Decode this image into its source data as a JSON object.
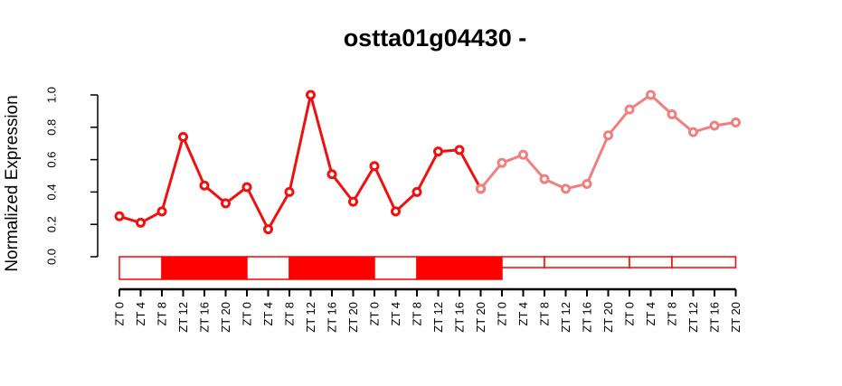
{
  "chart_data": {
    "type": "line",
    "title": "ostta01g04430 -",
    "xlabel": "",
    "ylabel": "Normalized Expression",
    "ylim": [
      0,
      1
    ],
    "yticks": [
      "0.0",
      "0.2",
      "0.4",
      "0.6",
      "0.8",
      "1.0"
    ],
    "x_tick_labels": [
      "ZT 0",
      "ZT 4",
      "ZT 8",
      "ZT 12",
      "ZT 16",
      "ZT 20",
      "ZT 0",
      "ZT 4",
      "ZT 8",
      "ZT 12",
      "ZT 16",
      "ZT 20",
      "ZT 0",
      "ZT 4",
      "ZT 8",
      "ZT 12",
      "ZT 16",
      "ZT 20",
      "ZT 0",
      "ZT 4",
      "ZT 8",
      "ZT 12",
      "ZT 16",
      "ZT 20",
      "ZT 0",
      "ZT 4",
      "ZT 8",
      "ZT 12",
      "ZT 16",
      "ZT 20"
    ],
    "grid": false,
    "legend": "none",
    "series": [
      {
        "color": "#ee1111",
        "x": [
          0,
          1,
          2,
          3,
          4,
          5,
          6,
          7,
          8,
          9,
          10,
          11,
          12,
          13,
          14,
          15,
          16,
          17
        ],
        "values": [
          0.25,
          0.21,
          0.28,
          0.74,
          0.44,
          0.33,
          0.43,
          0.17,
          0.4,
          1.0,
          0.51,
          0.34,
          0.56,
          0.28,
          0.4,
          0.65,
          0.66,
          0.42
        ]
      },
      {
        "color": "#f08080",
        "x": [
          17,
          18,
          19,
          20,
          21,
          22,
          23,
          24,
          25,
          26,
          27,
          28,
          29
        ],
        "values": [
          0.42,
          0.58,
          0.63,
          0.48,
          0.42,
          0.45,
          0.75,
          0.91,
          1.0,
          0.88,
          0.77,
          0.81,
          0.83
        ]
      }
    ],
    "light_dark_bar": {
      "fill_color": "#ff0000",
      "blocks": [
        {
          "from": 0,
          "to": 2,
          "dark": false
        },
        {
          "from": 2,
          "to": 6,
          "dark": true
        },
        {
          "from": 6,
          "to": 8,
          "dark": false
        },
        {
          "from": 8,
          "to": 12,
          "dark": true
        },
        {
          "from": 12,
          "to": 14,
          "dark": false
        },
        {
          "from": 14,
          "to": 18,
          "dark": true
        }
      ],
      "thin_blocks": [
        {
          "from": 18,
          "to": 20
        },
        {
          "from": 20,
          "to": 24
        },
        {
          "from": 24,
          "to": 26
        },
        {
          "from": 26,
          "to": 29
        }
      ]
    }
  }
}
